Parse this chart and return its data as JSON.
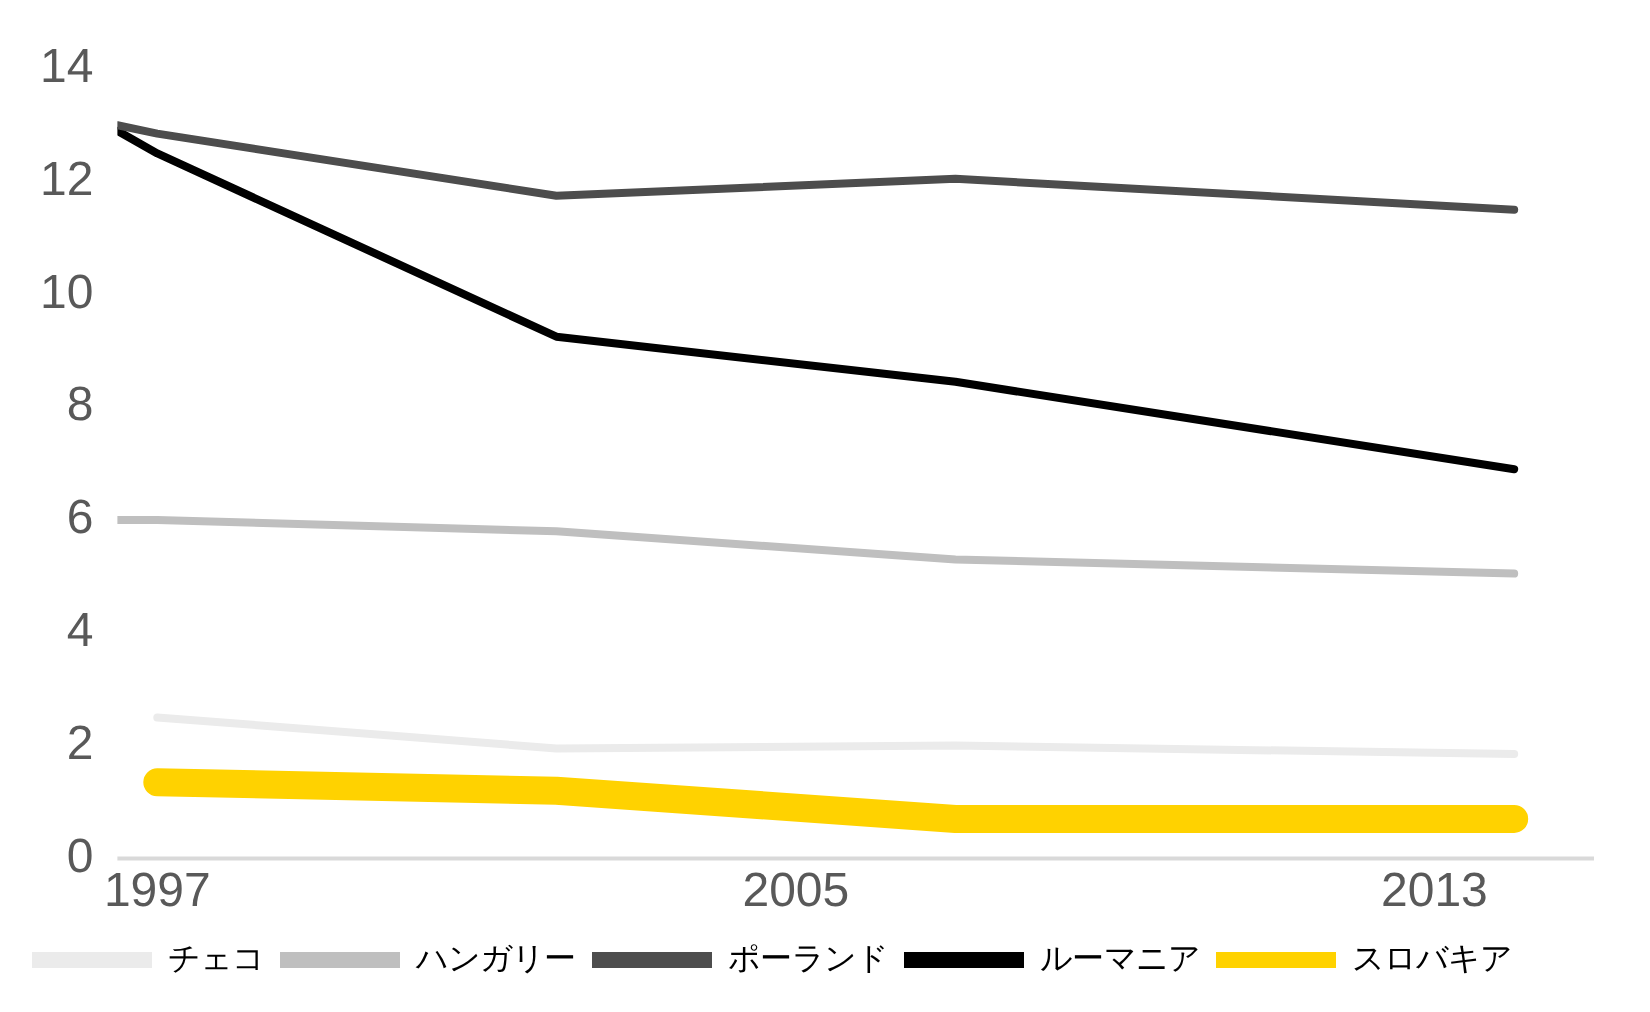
{
  "chart_data": {
    "type": "line",
    "x": [
      1996.5,
      1997,
      2002,
      2007,
      2014
    ],
    "xlim": [
      1996.5,
      2015
    ],
    "xticks": [
      1997,
      2005,
      2013
    ],
    "ylim": [
      0,
      14
    ],
    "yticks": [
      0,
      2,
      4,
      6,
      8,
      10,
      12,
      14
    ],
    "grid": false,
    "legend": "bottom",
    "marker": "none",
    "line_style": "solid",
    "series": [
      {
        "name": "チェコ",
        "color": "#ebebeb",
        "values": [
          null,
          2.5,
          1.95,
          2.0,
          1.85
        ]
      },
      {
        "name": "ハンガリー",
        "color": "#bfbfbf",
        "values": [
          6.0,
          6.0,
          5.8,
          5.3,
          5.05
        ]
      },
      {
        "name": "ポーランド",
        "color": "#4d4d4d",
        "values": [
          13.0,
          12.85,
          11.75,
          12.05,
          11.5
        ]
      },
      {
        "name": "ルーマニア",
        "color": "#000000",
        "values": [
          12.9,
          12.5,
          9.25,
          8.45,
          6.9
        ]
      },
      {
        "name": "スロバキア",
        "color": "#ffd200",
        "values": [
          null,
          1.35,
          1.2,
          0.7,
          0.7
        ]
      }
    ]
  }
}
